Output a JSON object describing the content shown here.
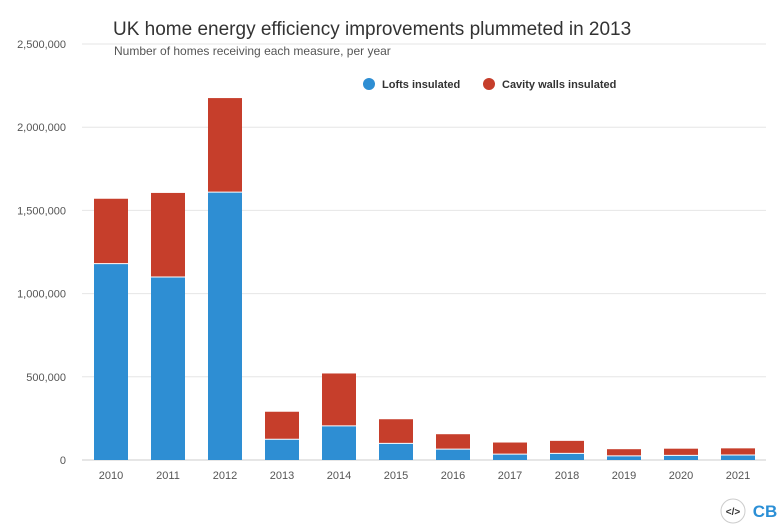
{
  "chart_data": {
    "type": "bar",
    "stacked": true,
    "title": "UK home energy efficiency improvements plummeted in 2013",
    "subtitle": "Number of homes receiving each measure, per year",
    "categories": [
      "2010",
      "2011",
      "2012",
      "2013",
      "2014",
      "2015",
      "2016",
      "2017",
      "2018",
      "2019",
      "2020",
      "2021"
    ],
    "series": [
      {
        "name": "Lofts insulated",
        "color": "#2e8ed3",
        "values": [
          1180000,
          1100000,
          1610000,
          125000,
          205000,
          100000,
          65000,
          35000,
          40000,
          25000,
          28000,
          30000
        ]
      },
      {
        "name": "Cavity walls insulated",
        "color": "#c63e2b",
        "values": [
          390000,
          505000,
          565000,
          165000,
          315000,
          145000,
          90000,
          70000,
          75000,
          40000,
          40000,
          40000
        ]
      }
    ],
    "y_ticks": [
      "0",
      "500,000",
      "1,000,000",
      "1,500,000",
      "2,000,000",
      "2,500,000"
    ],
    "ylim": [
      0,
      2500000
    ],
    "grid": true,
    "legend_position": "top-right"
  },
  "branding": {
    "logo_text": "CB",
    "code_icon": "</>"
  }
}
